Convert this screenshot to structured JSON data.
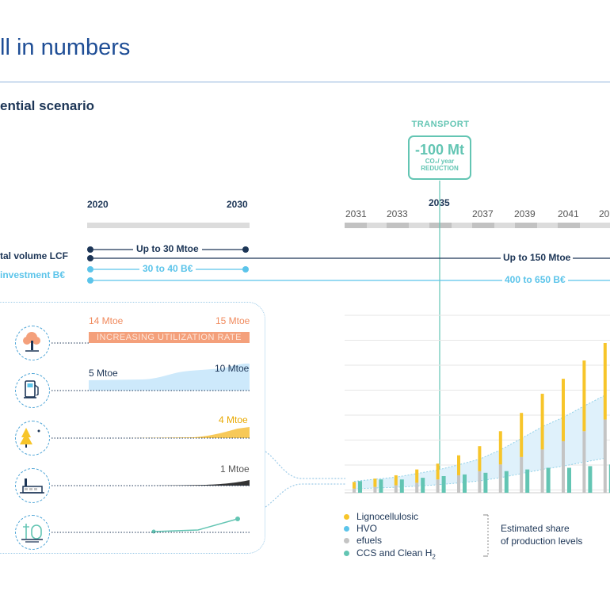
{
  "header": {
    "title": "ll in numbers",
    "subtitle": "ential scenario"
  },
  "transport": {
    "label": "TRANSPORT",
    "value": "-100 Mt",
    "unit": "CO₂/ year",
    "reduction": "REDUCTION",
    "year": "2035"
  },
  "timeline": {
    "stage1_start": "2020",
    "stage1_end": "2030",
    "years": [
      "2031",
      "2033",
      "2037",
      "2039",
      "2041",
      "20"
    ]
  },
  "rows": {
    "volume_label": "tal volume LCF",
    "investment_label": "investment B€",
    "volume_2030": "Up to 30 Mtoe",
    "volume_later": "Up to 150 Mtoe",
    "investment_2030": "30 to 40 B€",
    "investment_later": "400 to 650 B€"
  },
  "resources": {
    "r1_start": "14 Mtoe",
    "r1_end": "15 Mtoe",
    "r1_band": "INCREASING UTILIZATION RATE",
    "r2_start": "5 Mtoe",
    "r2_end": "10 Mtoe",
    "r3_end": "4 Mtoe",
    "r4_end": "1 Mtoe"
  },
  "icons": [
    "tree-icon",
    "fuel-pump-icon",
    "forest-moon-icon",
    "factory-icon",
    "hydrogen-tank-icon"
  ],
  "colors": {
    "navy": "#1c3556",
    "light_blue": "#5bc4ea",
    "teal": "#63c5b3",
    "orange": "#f4a07b",
    "yellow": "#f7c52a",
    "grey": "#c4c4c4",
    "band_fill": "#dff1fb"
  },
  "chart_data": {
    "type": "bar",
    "stacked": true,
    "series": [
      {
        "name": "Lignocellulosic",
        "color": "#f7c52a",
        "values": [
          0.8,
          1.0,
          1.2,
          1.6,
          1.9,
          2.4,
          3.0,
          4.0,
          5.3,
          6.7,
          7.5,
          8.5,
          9.2
        ]
      },
      {
        "name": "HVO",
        "color": "#5bc4ea",
        "values": [
          0,
          0,
          0,
          0,
          0,
          0,
          0,
          0,
          0,
          0,
          0,
          0,
          0
        ]
      },
      {
        "name": "efuels",
        "color": "#c4c4c4",
        "values": [
          0.5,
          0.7,
          0.9,
          1.2,
          1.6,
          2.1,
          2.6,
          3.4,
          4.3,
          5.2,
          6.2,
          7.4,
          8.8
        ]
      },
      {
        "name": "CCS and Clean H",
        "subscript": "2",
        "color": "#63c5b3",
        "values": [
          0.35,
          0.4,
          0.4,
          0.45,
          0.5,
          0.55,
          0.6,
          0.65,
          0.7,
          0.75,
          0.75,
          0.8,
          0.85
        ]
      }
    ],
    "gridlines": true,
    "legend_position": "bottom-left",
    "estimate_label": [
      "Estimated share",
      "of production levels"
    ]
  }
}
